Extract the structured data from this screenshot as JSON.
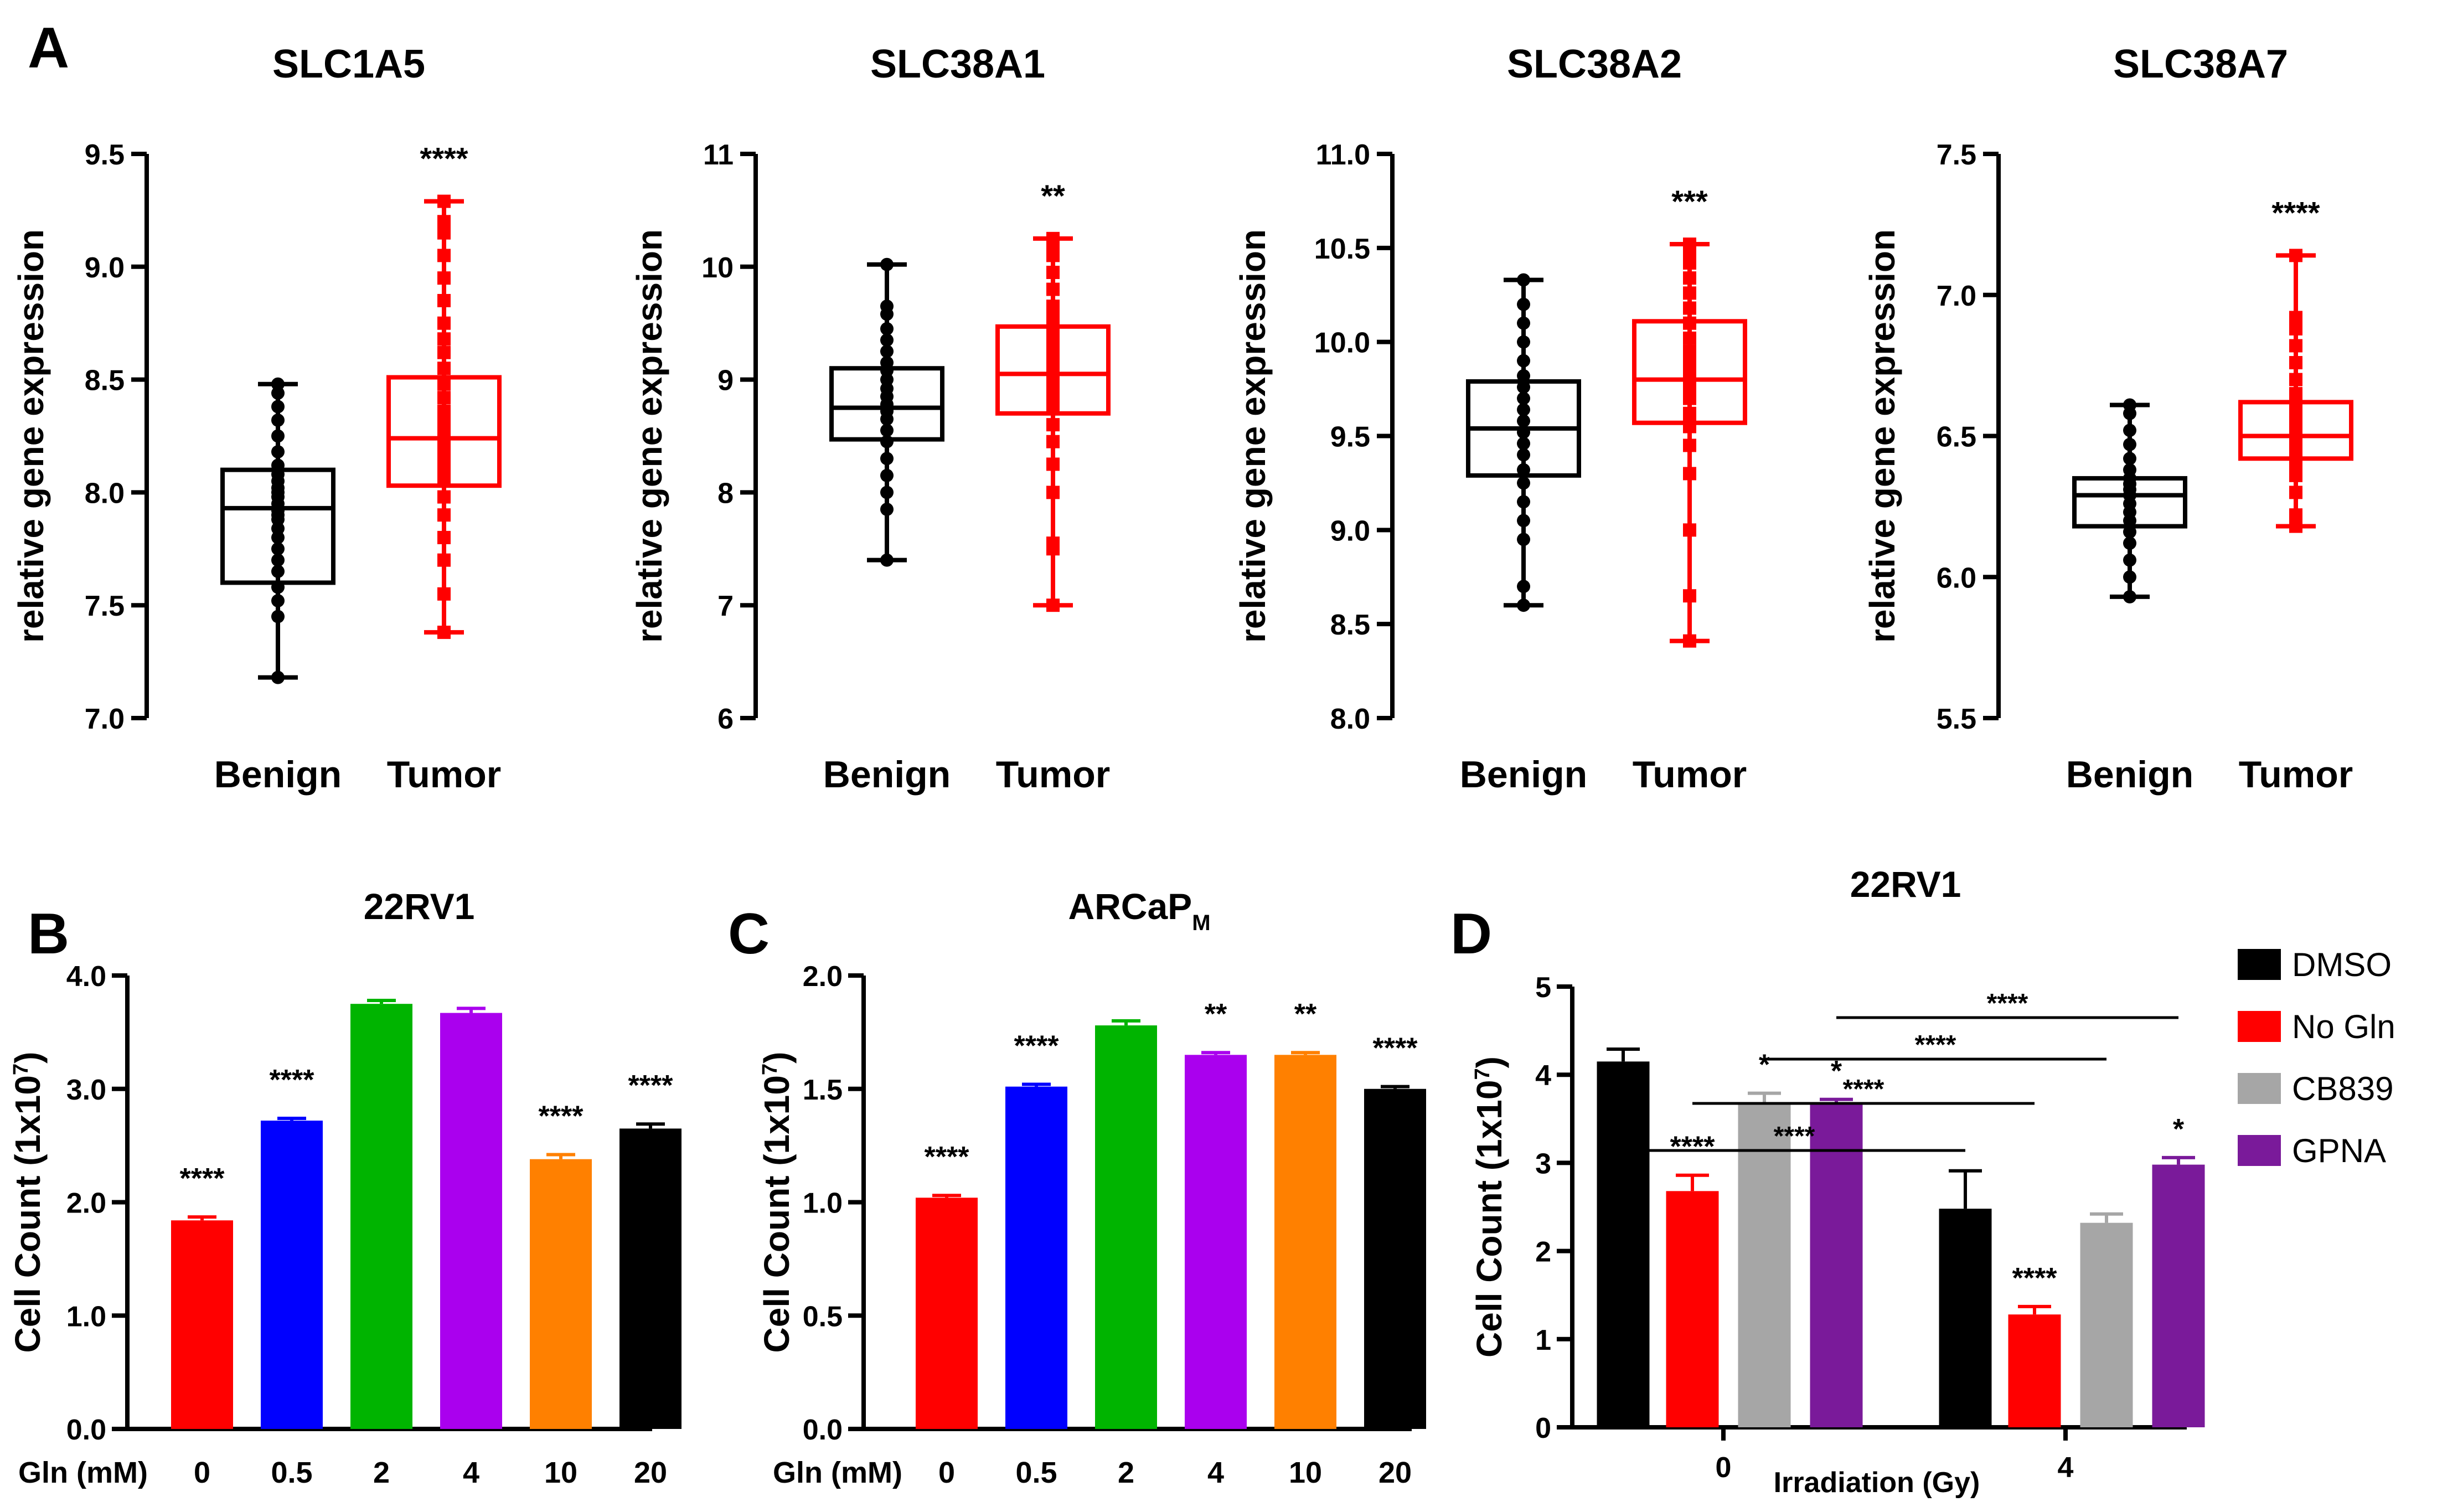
{
  "panels": [
    {
      "letter": "A"
    },
    {
      "letter": "B"
    },
    {
      "letter": "C"
    },
    {
      "letter": "D"
    }
  ],
  "chart_data": [
    {
      "id": "A1",
      "type": "box",
      "title": "SLC1A5",
      "ylabel": "relative gene expression",
      "ylim": [
        7.0,
        9.5
      ],
      "yticks": [
        7.0,
        7.5,
        8.0,
        8.5,
        9.0,
        9.5
      ],
      "ytick_labels": [
        "7.0",
        "7.5",
        "8.0",
        "8.5",
        "9.0",
        "9.5"
      ],
      "categories": [
        "Benign",
        "Tumor"
      ],
      "colors": [
        "#000000",
        "#ff0000"
      ],
      "boxes": [
        {
          "min": 7.18,
          "q1": 7.6,
          "median": 7.93,
          "q3": 8.1,
          "max": 8.48
        },
        {
          "min": 7.38,
          "q1": 8.03,
          "median": 8.24,
          "q3": 8.51,
          "max": 9.29
        }
      ],
      "points": [
        [
          7.18,
          7.45,
          7.52,
          7.58,
          7.65,
          7.7,
          7.75,
          7.8,
          7.84,
          7.88,
          7.9,
          7.92,
          7.95,
          7.98,
          8.0,
          8.02,
          8.05,
          8.08,
          8.12,
          8.18,
          8.25,
          8.32,
          8.38,
          8.44,
          8.48
        ],
        [
          7.38,
          7.55,
          7.7,
          7.8,
          7.9,
          7.98,
          8.05,
          8.1,
          8.15,
          8.2,
          8.24,
          8.28,
          8.32,
          8.36,
          8.42,
          8.48,
          8.55,
          8.62,
          8.68,
          8.75,
          8.85,
          8.95,
          9.05,
          9.15,
          9.2,
          9.29
        ]
      ],
      "significance": "****"
    },
    {
      "id": "A2",
      "type": "box",
      "title": "SLC38A1",
      "ylabel": "relative gene expression",
      "ylim": [
        6,
        11
      ],
      "yticks": [
        6,
        7,
        8,
        9,
        10,
        11
      ],
      "ytick_labels": [
        "6",
        "7",
        "8",
        "9",
        "10",
        "11"
      ],
      "categories": [
        "Benign",
        "Tumor"
      ],
      "colors": [
        "#000000",
        "#ff0000"
      ],
      "boxes": [
        {
          "min": 7.4,
          "q1": 8.47,
          "median": 8.75,
          "q3": 9.1,
          "max": 10.02
        },
        {
          "min": 7.0,
          "q1": 8.7,
          "median": 9.05,
          "q3": 9.47,
          "max": 10.25
        }
      ],
      "points": [
        [
          7.4,
          7.85,
          8.0,
          8.15,
          8.3,
          8.45,
          8.55,
          8.65,
          8.72,
          8.78,
          8.85,
          8.92,
          9.0,
          9.08,
          9.15,
          9.25,
          9.35,
          9.45,
          9.58,
          9.65,
          10.02
        ],
        [
          7.0,
          7.5,
          7.55,
          8.0,
          8.25,
          8.45,
          8.6,
          8.75,
          8.85,
          8.95,
          9.05,
          9.15,
          9.25,
          9.35,
          9.45,
          9.55,
          9.65,
          9.8,
          9.95,
          10.1,
          10.2,
          10.25
        ]
      ],
      "significance": "**"
    },
    {
      "id": "A3",
      "type": "box",
      "title": "SLC38A2",
      "ylabel": "relative gene expression",
      "ylim": [
        8.0,
        11.0
      ],
      "yticks": [
        8.0,
        8.5,
        9.0,
        9.5,
        10.0,
        10.5,
        11.0
      ],
      "ytick_labels": [
        "8.0",
        "8.5",
        "9.0",
        "9.5",
        "10.0",
        "10.5",
        "11.0"
      ],
      "categories": [
        "Benign",
        "Tumor"
      ],
      "colors": [
        "#000000",
        "#ff0000"
      ],
      "boxes": [
        {
          "min": 8.6,
          "q1": 9.29,
          "median": 9.54,
          "q3": 9.79,
          "max": 10.33
        },
        {
          "min": 8.41,
          "q1": 9.57,
          "median": 9.8,
          "q3": 10.11,
          "max": 10.52
        }
      ],
      "points": [
        [
          8.6,
          8.7,
          8.95,
          9.05,
          9.15,
          9.25,
          9.32,
          9.4,
          9.46,
          9.52,
          9.58,
          9.64,
          9.7,
          9.76,
          9.82,
          9.9,
          10.0,
          10.1,
          10.2,
          10.33
        ],
        [
          8.41,
          8.65,
          9.0,
          9.3,
          9.45,
          9.55,
          9.62,
          9.7,
          9.76,
          9.82,
          9.88,
          9.95,
          10.02,
          10.1,
          10.18,
          10.26,
          10.34,
          10.42,
          10.48,
          10.52
        ]
      ],
      "significance": "***"
    },
    {
      "id": "A4",
      "type": "box",
      "title": "SLC38A7",
      "ylabel": "relative gene expression",
      "ylim": [
        5.5,
        7.5
      ],
      "yticks": [
        5.5,
        6.0,
        6.5,
        7.0,
        7.5
      ],
      "ytick_labels": [
        "5.5",
        "6.0",
        "6.5",
        "7.0",
        "7.5"
      ],
      "categories": [
        "Benign",
        "Tumor"
      ],
      "colors": [
        "#000000",
        "#ff0000"
      ],
      "boxes": [
        {
          "min": 5.93,
          "q1": 6.18,
          "median": 6.29,
          "q3": 6.35,
          "max": 6.61
        },
        {
          "min": 6.18,
          "q1": 6.42,
          "median": 6.5,
          "q3": 6.62,
          "max": 7.14
        }
      ],
      "points": [
        [
          5.93,
          6.0,
          6.06,
          6.12,
          6.16,
          6.2,
          6.23,
          6.26,
          6.29,
          6.31,
          6.33,
          6.35,
          6.38,
          6.42,
          6.47,
          6.52,
          6.58,
          6.61
        ],
        [
          6.18,
          6.22,
          6.3,
          6.36,
          6.4,
          6.44,
          6.47,
          6.5,
          6.53,
          6.56,
          6.6,
          6.65,
          6.7,
          6.76,
          6.82,
          6.88,
          6.92,
          7.14
        ]
      ],
      "significance": "****"
    },
    {
      "id": "B",
      "type": "bar",
      "title": "22RV1",
      "ylabel": "Cell Count (1x10",
      "ylabel_sup": "7",
      "ylabel_end": ")",
      "xlabel": "Gln (mM)",
      "ylim": [
        0,
        4.0
      ],
      "yticks": [
        0,
        1,
        2,
        3,
        4
      ],
      "ytick_labels": [
        "0.0",
        "1.0",
        "2.0",
        "3.0",
        "4.0"
      ],
      "categories": [
        "0",
        "0.5",
        "2",
        "4",
        "10",
        "20"
      ],
      "values": [
        1.84,
        2.72,
        3.75,
        3.67,
        2.38,
        2.65
      ],
      "errors": [
        0.03,
        0.02,
        0.03,
        0.04,
        0.04,
        0.04
      ],
      "colors": [
        "#ff0000",
        "#0000ff",
        "#00b400",
        "#aa00ee",
        "#ff8000",
        "#000000"
      ],
      "significance": [
        "****",
        "****",
        "",
        "",
        "****",
        "****"
      ]
    },
    {
      "id": "C",
      "type": "bar",
      "title": "ARCaP",
      "title_sub": "M",
      "ylabel": "Cell Count (1x10",
      "ylabel_sup": "7",
      "ylabel_end": ")",
      "xlabel": "Gln (mM)",
      "ylim": [
        0,
        2.0
      ],
      "yticks": [
        0,
        0.5,
        1.0,
        1.5,
        2.0
      ],
      "ytick_labels": [
        "0.0",
        "0.5",
        "1.0",
        "1.5",
        "2.0"
      ],
      "categories": [
        "0",
        "0.5",
        "2",
        "4",
        "10",
        "20"
      ],
      "values": [
        1.02,
        1.51,
        1.78,
        1.65,
        1.65,
        1.5
      ],
      "errors": [
        0.01,
        0.01,
        0.02,
        0.01,
        0.01,
        0.01
      ],
      "colors": [
        "#ff0000",
        "#0000ff",
        "#00b400",
        "#aa00ee",
        "#ff8000",
        "#000000"
      ],
      "significance": [
        "****",
        "****",
        "",
        "**",
        "**",
        "****"
      ]
    },
    {
      "id": "D",
      "type": "grouped-bar",
      "title": "22RV1",
      "ylabel": "Cell Count (1x10",
      "ylabel_sup": "7",
      "ylabel_end": ")",
      "xlabel": "Irradiation (Gy)",
      "ylim": [
        0,
        5
      ],
      "yticks": [
        0,
        1,
        2,
        3,
        4,
        5
      ],
      "ytick_labels": [
        "0",
        "1",
        "2",
        "3",
        "4",
        "5"
      ],
      "categories": [
        "0",
        "4"
      ],
      "series": [
        {
          "name": "DMSO",
          "color": "#000000",
          "values": [
            4.15,
            2.48
          ],
          "errors": [
            0.14,
            0.43
          ],
          "significance": [
            "",
            ""
          ]
        },
        {
          "name": "No Gln",
          "color": "#ff0000",
          "values": [
            2.68,
            1.28
          ],
          "errors": [
            0.18,
            0.09
          ],
          "significance": [
            "****",
            "****"
          ]
        },
        {
          "name": "CB839",
          "color": "#a6a6a6",
          "values": [
            3.67,
            2.32
          ],
          "errors": [
            0.12,
            0.1
          ],
          "significance": [
            "*",
            ""
          ]
        },
        {
          "name": "GPNA",
          "color": "#7a1a9a",
          "values": [
            3.68,
            2.98
          ],
          "errors": [
            0.04,
            0.08
          ],
          "significance": [
            "*",
            "*"
          ]
        }
      ],
      "comparisons": [
        {
          "from": "DMSO@0",
          "to": "DMSO@4",
          "label": "****"
        },
        {
          "from": "No Gln@0",
          "to": "No Gln@4",
          "label": "****"
        },
        {
          "from": "CB839@0",
          "to": "CB839@4",
          "label": "****"
        },
        {
          "from": "GPNA@0",
          "to": "GPNA@4",
          "label": "****"
        }
      ]
    }
  ]
}
